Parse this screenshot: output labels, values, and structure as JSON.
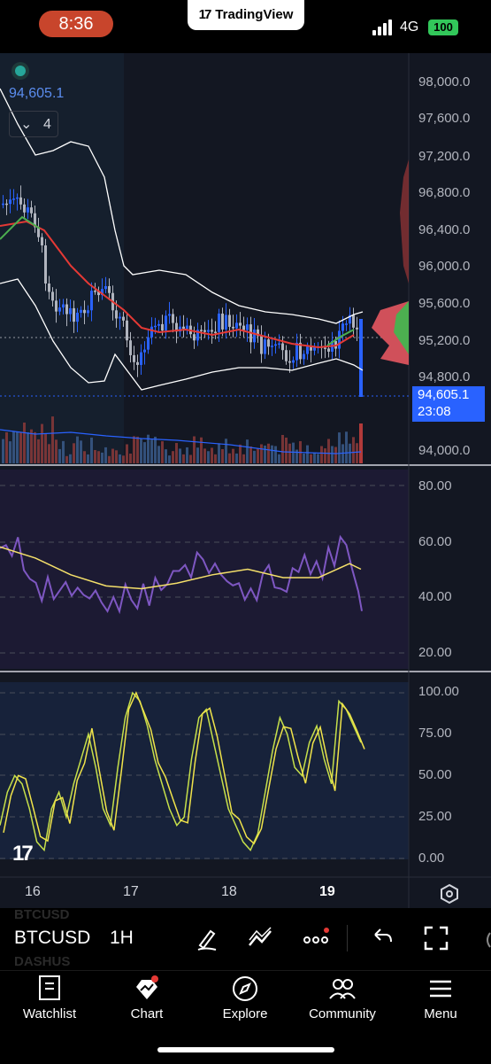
{
  "status_bar": {
    "time": "8:36",
    "banner": "TradingView",
    "network": "4G",
    "battery": "100"
  },
  "legend": {
    "price": "94,605.1",
    "indicator_count": "4"
  },
  "price_axis": {
    "labels": [
      "98,000.0",
      "97,600.0",
      "97,200.0",
      "96,800.0",
      "96,400.0",
      "96,000.0",
      "95,600.0",
      "95,200.0",
      "94,800.0",
      "94,000.0"
    ],
    "last_price": "94,605.1",
    "countdown": "23:08"
  },
  "rsi_axis": {
    "labels": [
      "80.00",
      "60.00",
      "40.00",
      "20.00"
    ]
  },
  "stoch_axis": {
    "labels": [
      "100.00",
      "75.00",
      "50.00",
      "25.00",
      "0.00"
    ]
  },
  "time_axis": {
    "labels": [
      "16",
      "17",
      "18",
      "19"
    ]
  },
  "toolbar": {
    "symbol": "BTCUSD",
    "interval": "1H",
    "ghost_top": "BTCUSD",
    "ghost_bottom": "DASHUS"
  },
  "nav": {
    "items": [
      "Watchlist",
      "Chart",
      "Explore",
      "Community",
      "Menu"
    ]
  },
  "colors": {
    "bull": "#2962ff",
    "bear": "#b0b4be",
    "rsi": "#7e57c2",
    "ma": "#f5e06a",
    "stoch_k": "#c6e04a",
    "stoch_d": "#f0e34a",
    "accent": "#2962ff"
  }
}
